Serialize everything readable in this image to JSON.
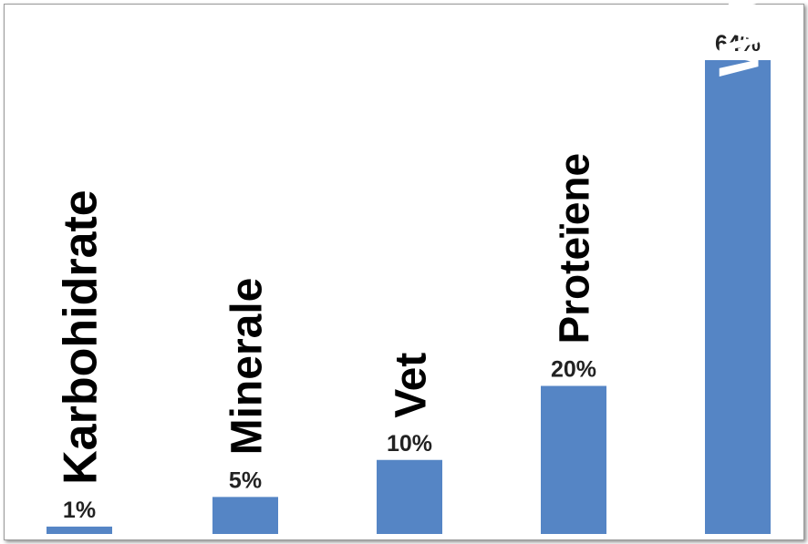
{
  "chart_data": {
    "type": "bar",
    "categories": [
      "Karbohidrate",
      "Minerale",
      "Vet",
      "Proteïene",
      "Water"
    ],
    "values": [
      1,
      5,
      10,
      20,
      64
    ],
    "value_labels": [
      "1%",
      "5%",
      "10%",
      "20%",
      "64%"
    ],
    "title": "",
    "xlabel": "",
    "ylabel": "",
    "ylim": [
      0,
      64
    ],
    "grid": false,
    "legend": "none",
    "bar_color": "#5585c5",
    "label_color": "#000000",
    "inside_label_color": "#ffffff"
  }
}
